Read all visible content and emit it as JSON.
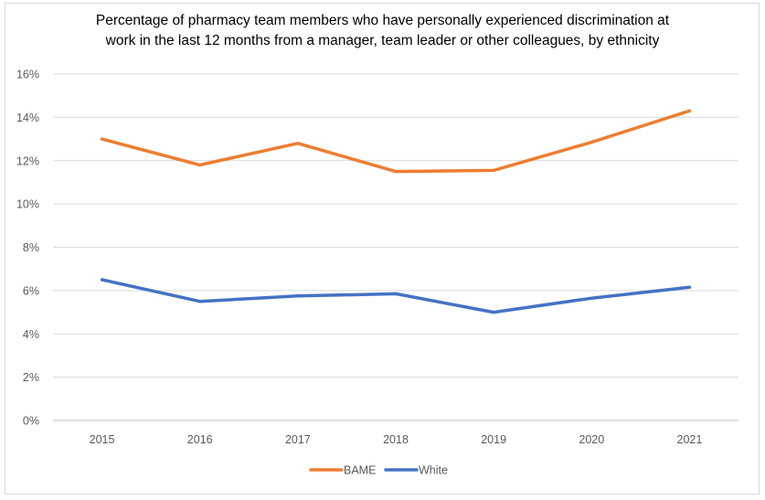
{
  "chart_data": {
    "type": "line",
    "title_lines": [
      "Percentage of pharmacy team members who have personally experienced discrimination at",
      "work in the last 12 months from a manager, team leader or other colleagues, by ethnicity"
    ],
    "categories": [
      "2015",
      "2016",
      "2017",
      "2018",
      "2019",
      "2020",
      "2021"
    ],
    "series": [
      {
        "name": "BAME",
        "color": "#ED7D31",
        "values": [
          13.0,
          11.8,
          12.8,
          11.5,
          11.55,
          12.85,
          14.3
        ]
      },
      {
        "name": "White",
        "color": "#4472C4",
        "values": [
          6.5,
          5.5,
          5.75,
          5.85,
          5.0,
          5.65,
          6.15
        ]
      }
    ],
    "y_ticks": [
      "0%",
      "2%",
      "4%",
      "6%",
      "8%",
      "10%",
      "12%",
      "14%",
      "16%"
    ],
    "ylim": [
      0,
      16
    ],
    "xlabel": "",
    "ylabel": "",
    "legend_position": "bottom",
    "gridlines": true
  }
}
